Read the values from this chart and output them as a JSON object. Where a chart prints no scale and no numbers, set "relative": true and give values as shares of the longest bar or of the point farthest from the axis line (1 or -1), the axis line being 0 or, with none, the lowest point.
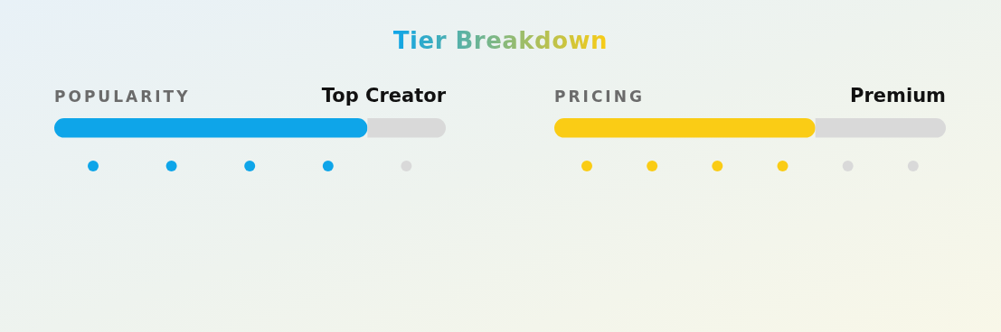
{
  "chart_data": [
    {
      "type": "other",
      "title": "Tier Breakdown"
    },
    {
      "type": "bar",
      "title": "POPULARITY",
      "subtitle": "Top Creator",
      "orientation": "horizontal",
      "stacked": true,
      "relative": true,
      "categories": [
        null
      ],
      "series": [
        {
          "color": "#0ea5e9",
          "values": [
            0.8
          ]
        },
        {
          "color": "#d9d9d9",
          "values": [
            0.2
          ]
        }
      ]
    },
    {
      "type": "bar",
      "title": "PRICING",
      "subtitle": "Premium",
      "orientation": "horizontal",
      "stacked": true,
      "relative": true,
      "categories": [
        null
      ],
      "series": [
        {
          "color": "#facc15",
          "values": [
            0.6667
          ]
        },
        {
          "color": "#d9d9d9",
          "values": [
            0.3333
          ]
        }
      ]
    }
  ]
}
